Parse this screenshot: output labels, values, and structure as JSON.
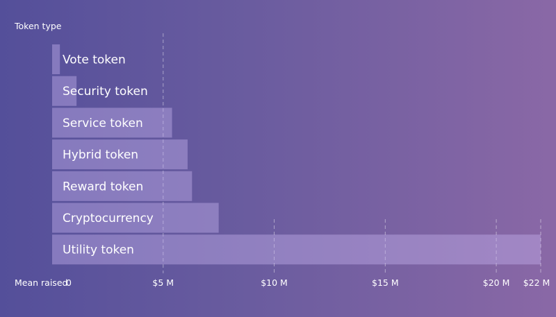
{
  "chart_data": {
    "type": "bar",
    "orientation": "horizontal",
    "ylabel": "Token type",
    "xlabel": "Mean raised",
    "xlim": [
      0,
      22
    ],
    "x_tick_values": [
      0,
      5,
      10,
      15,
      20,
      22
    ],
    "x_tick_labels": [
      "0",
      "$5 M",
      "$10 M",
      "$15 M",
      "$20 M",
      "$22 M"
    ],
    "categories": [
      "Vote token",
      "Security token",
      "Service token",
      "Hybrid token",
      "Reward token",
      "Cryptocurrency",
      "Utility token"
    ],
    "values": [
      0.35,
      1.1,
      5.4,
      6.1,
      6.3,
      7.5,
      22.0
    ],
    "grid": true,
    "colors": {
      "bar": "#c5b2ee",
      "text": "#ffffff",
      "grid": "#ffffff"
    }
  }
}
